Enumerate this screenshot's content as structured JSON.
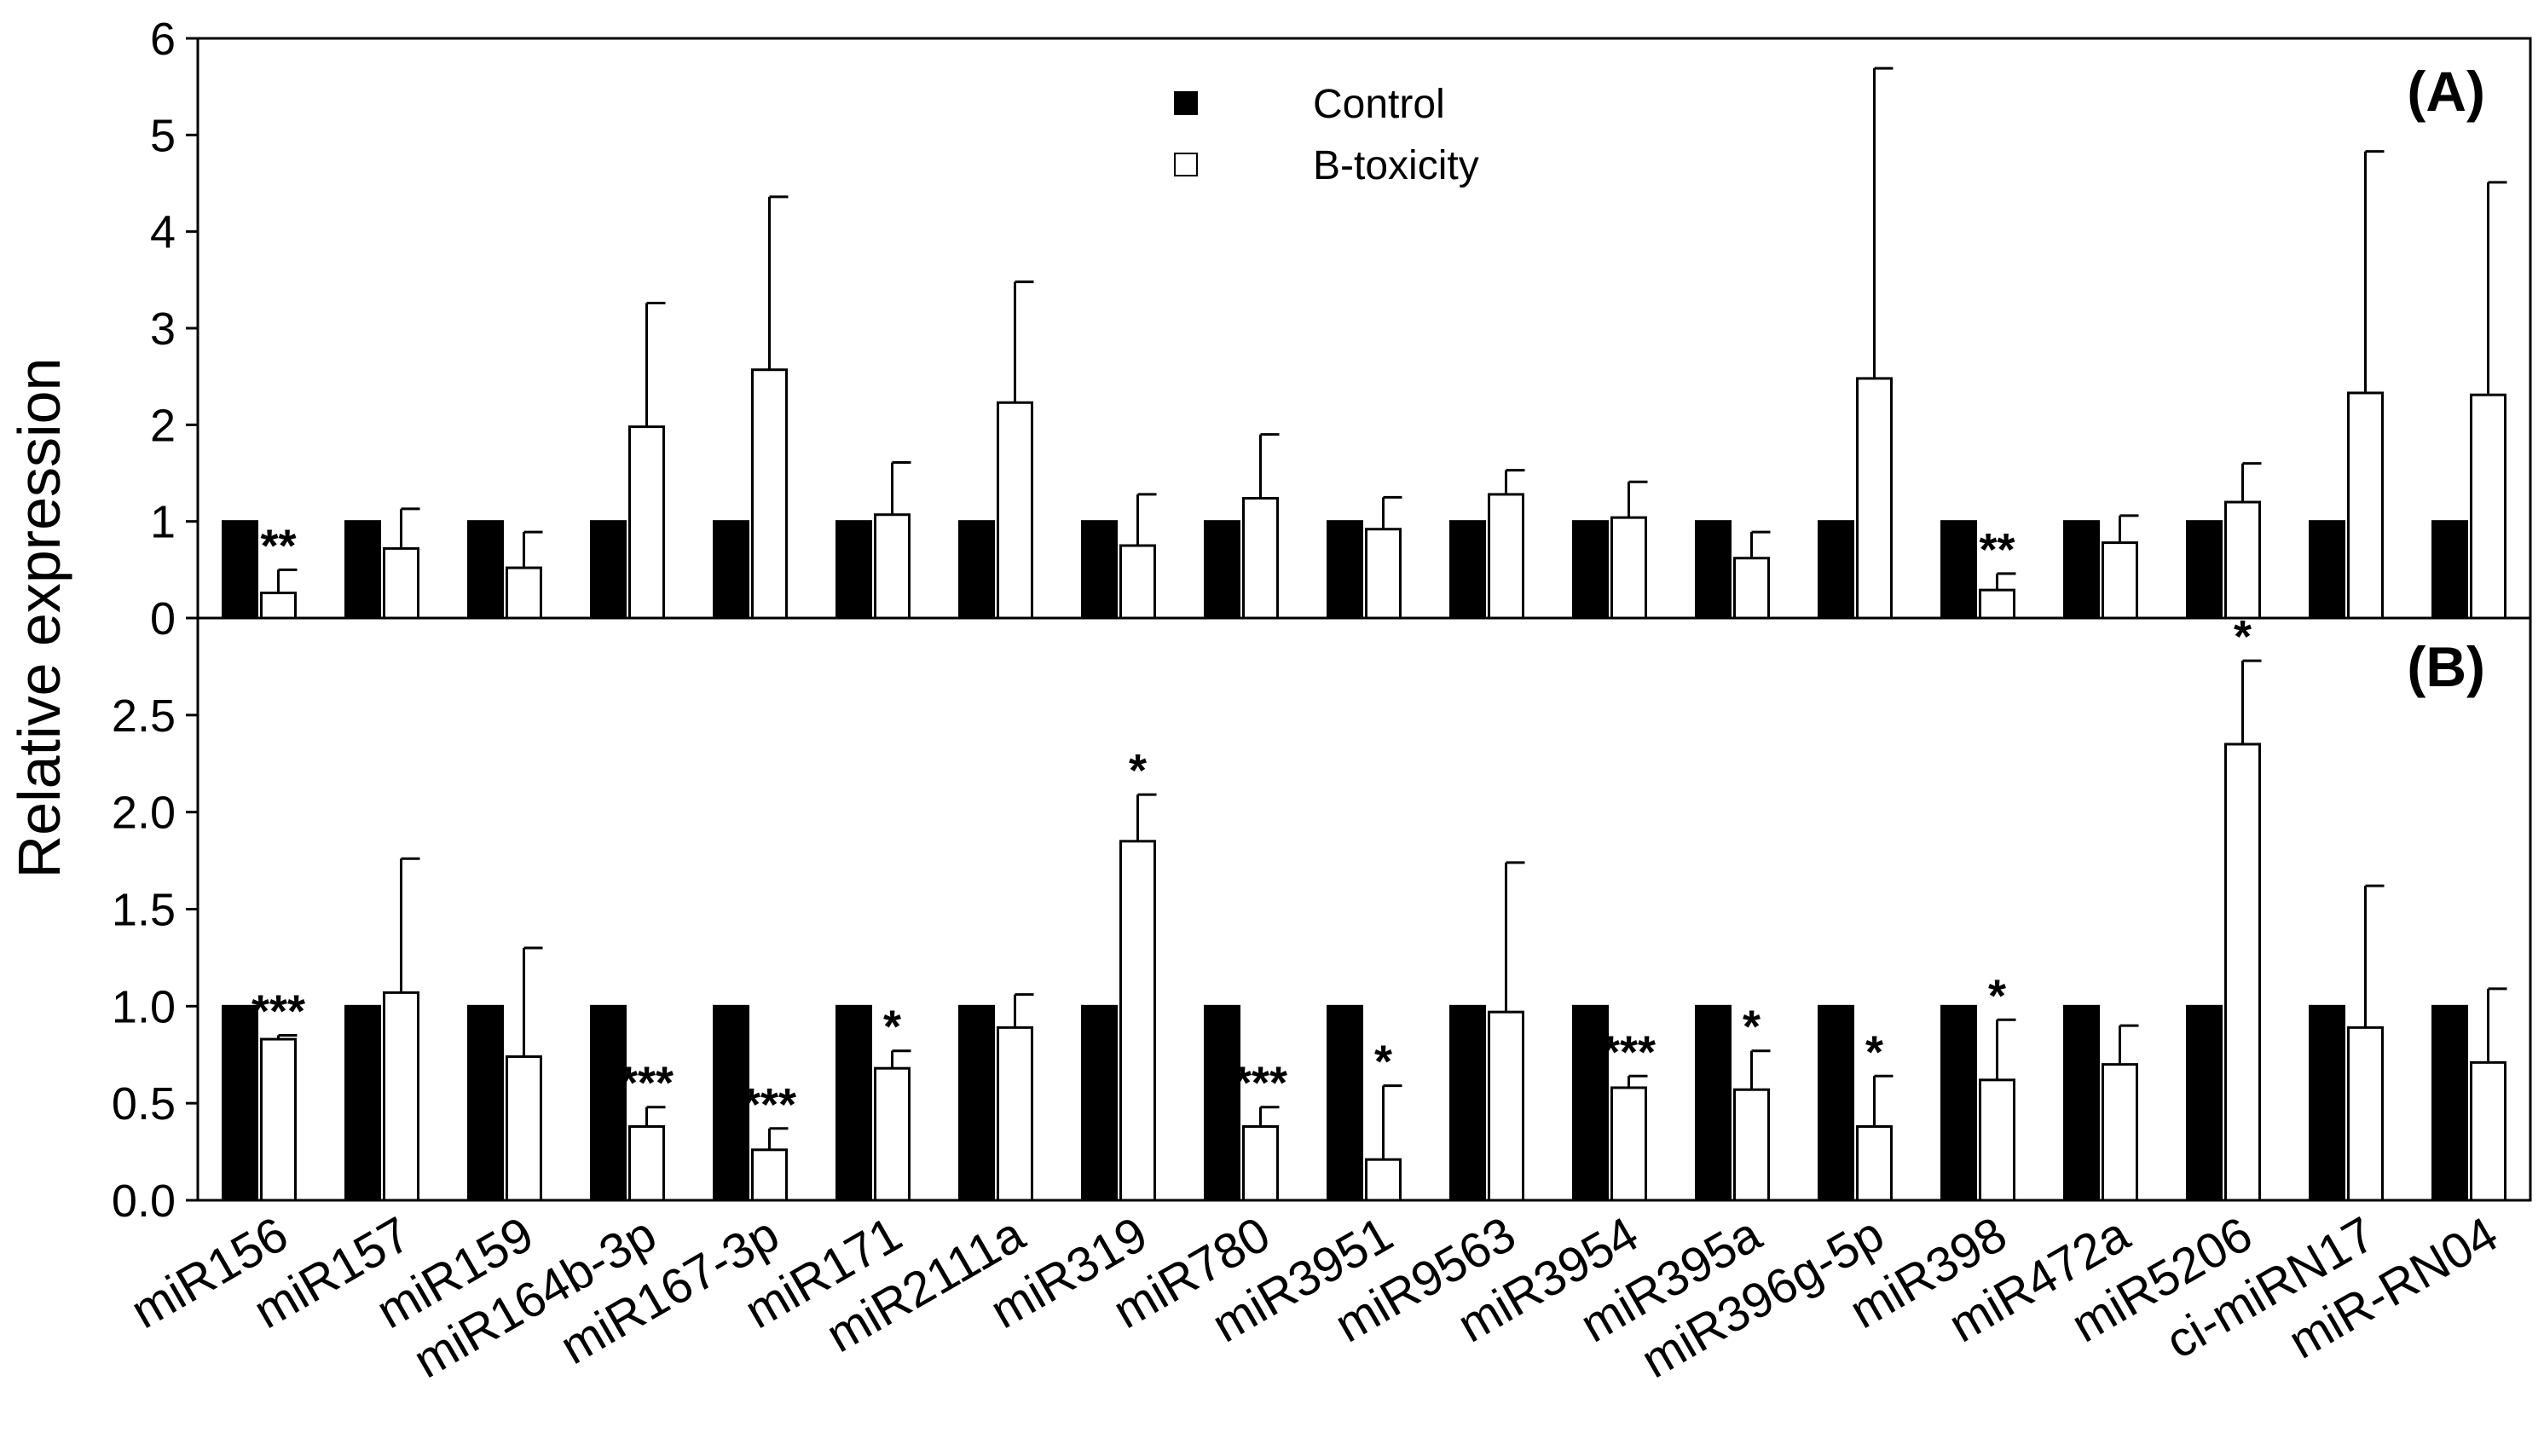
{
  "chart_data": [
    {
      "panel": "(A)",
      "type": "bar",
      "ylabel": "Relative expression",
      "ylim": [
        0,
        6
      ],
      "yticks": [
        "0",
        "1",
        "2",
        "3",
        "4",
        "5",
        "6"
      ],
      "legend": [
        "Control",
        "B-toxicity"
      ],
      "legend_position": "top-center",
      "categories": [
        "miR156",
        "miR157",
        "miR159",
        "miR164b-3p",
        "miR167-3p",
        "miR171",
        "miR2111a",
        "miR319",
        "miR780",
        "miR3951",
        "miR9563",
        "miR3954",
        "miR395a",
        "miR396g-5p",
        "miR398",
        "miR472a",
        "miR5206",
        "ci-miRN17",
        "miR-RN04"
      ],
      "series": [
        {
          "name": "Control",
          "color": "#000000",
          "values": [
            1,
            1,
            1,
            1,
            1,
            1,
            1,
            1,
            1,
            1,
            1,
            1,
            1,
            1,
            1,
            1,
            1,
            1,
            1
          ],
          "errors": [
            0,
            0,
            0,
            0,
            0,
            0,
            0,
            0,
            0,
            0,
            0,
            0,
            0,
            0,
            0,
            0,
            0,
            0,
            0
          ]
        },
        {
          "name": "B-toxicity",
          "color": "#ffffff",
          "values": [
            0.26,
            0.72,
            0.52,
            1.98,
            2.57,
            1.07,
            2.23,
            0.75,
            1.24,
            0.92,
            1.28,
            1.04,
            0.62,
            2.48,
            0.29,
            0.78,
            1.2,
            2.33,
            2.31
          ],
          "errors": [
            0.24,
            0.41,
            0.37,
            1.28,
            1.79,
            0.54,
            1.25,
            0.53,
            0.66,
            0.33,
            0.25,
            0.37,
            0.27,
            3.21,
            0.17,
            0.28,
            0.4,
            2.5,
            2.2
          ]
        }
      ],
      "significance": [
        "**",
        "",
        "",
        "",
        "",
        "",
        "",
        "",
        "",
        "",
        "",
        "",
        "",
        "",
        "**",
        "",
        "",
        "",
        ""
      ]
    },
    {
      "panel": "(B)",
      "type": "bar",
      "ylabel": "Relative expression",
      "ylim": [
        0,
        3.0
      ],
      "yticks": [
        "0.0",
        "0.5",
        "1.0",
        "1.5",
        "2.0",
        "2.5"
      ],
      "categories": [
        "miR156",
        "miR157",
        "miR159",
        "miR164b-3p",
        "miR167-3p",
        "miR171",
        "miR2111a",
        "miR319",
        "miR780",
        "miR3951",
        "miR9563",
        "miR3954",
        "miR395a",
        "miR396g-5p",
        "miR398",
        "miR472a",
        "miR5206",
        "ci-miRN17",
        "miR-RN04"
      ],
      "series": [
        {
          "name": "Control",
          "color": "#000000",
          "values": [
            1,
            1,
            1,
            1,
            1,
            1,
            1,
            1,
            1,
            1,
            1,
            1,
            1,
            1,
            1,
            1,
            1,
            1,
            1
          ],
          "errors": [
            0,
            0,
            0,
            0,
            0,
            0,
            0,
            0,
            0,
            0,
            0,
            0,
            0,
            0,
            0,
            0,
            0,
            0,
            0
          ]
        },
        {
          "name": "B-toxicity",
          "color": "#ffffff",
          "values": [
            0.83,
            1.07,
            0.74,
            0.38,
            0.26,
            0.68,
            0.89,
            1.85,
            0.38,
            0.21,
            0.97,
            0.58,
            0.57,
            0.38,
            0.62,
            0.7,
            2.35,
            0.89,
            0.71
          ],
          "errors": [
            0.02,
            0.69,
            0.56,
            0.1,
            0.11,
            0.09,
            0.17,
            0.24,
            0.1,
            0.38,
            0.77,
            0.06,
            0.2,
            0.26,
            0.31,
            0.2,
            0.43,
            0.73,
            0.38
          ]
        }
      ],
      "significance": [
        "***",
        "",
        "",
        "***",
        "***",
        "*",
        "",
        "*",
        "***",
        "*",
        "",
        "***",
        "*",
        "*",
        "*",
        "",
        "*",
        "",
        ""
      ]
    }
  ]
}
